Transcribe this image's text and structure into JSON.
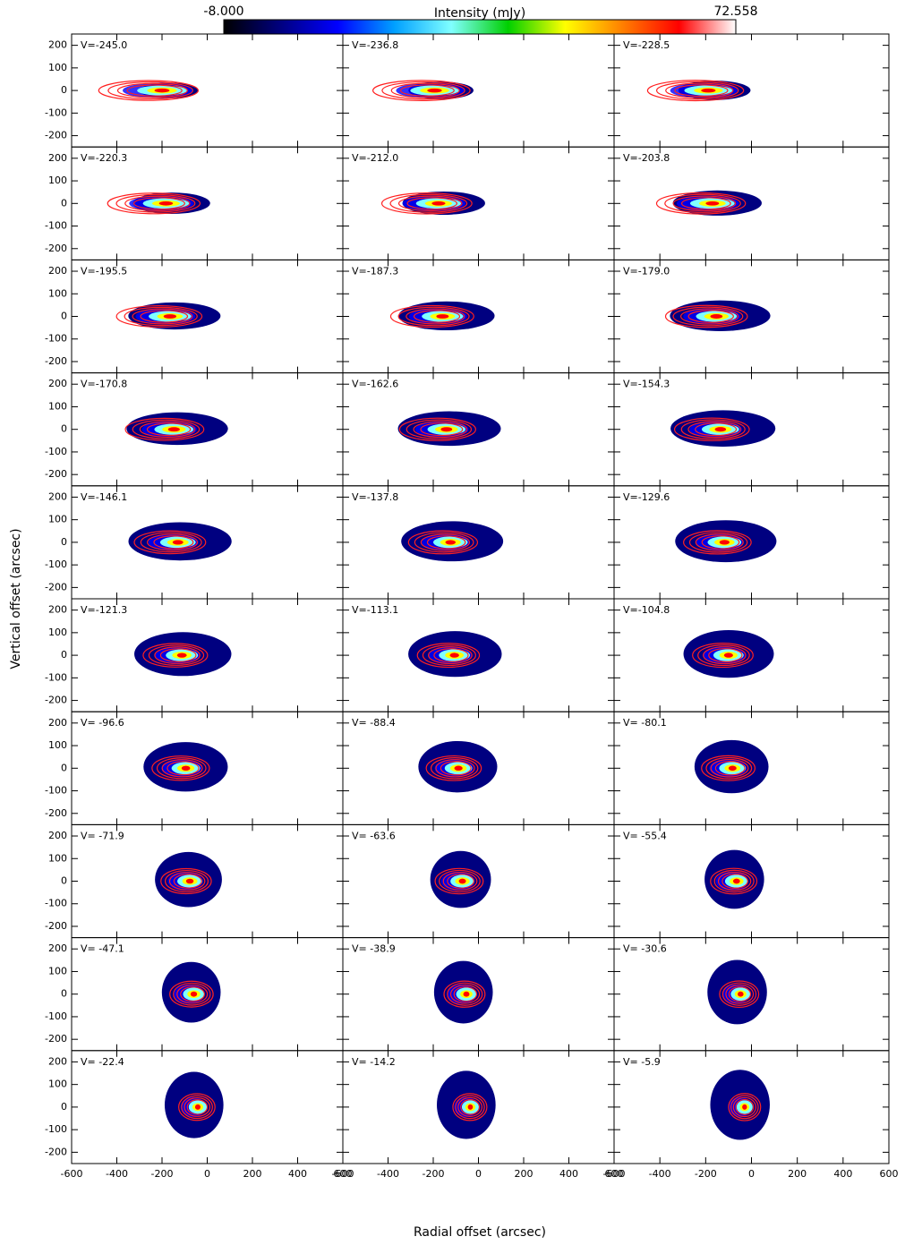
{
  "chart_data": {
    "type": "channel_map",
    "xlabel": "Radial offset (arcsec)",
    "ylabel": "Vertical offset (arcsec)",
    "xlim": [
      -600,
      600
    ],
    "ylim": [
      -250,
      250
    ],
    "xticks": [
      -600,
      -400,
      -200,
      0,
      200,
      400,
      600
    ],
    "yticks": [
      -200,
      -100,
      0,
      100,
      200
    ],
    "columns": 3,
    "panels": [
      "V=-245.0",
      "V=-236.8",
      "V=-228.5",
      "V=-220.3",
      "V=-212.0",
      "V=-203.8",
      "V=-195.5",
      "V=-187.3",
      "V=-179.0",
      "V=-170.8",
      "V=-162.6",
      "V=-154.3",
      "V=-146.1",
      "V=-137.8",
      "V=-129.6",
      "V=-121.3",
      "V=-113.1",
      "V=-104.8",
      "V= -96.6",
      "V= -88.4",
      "V= -80.1",
      "V= -71.9",
      "V= -63.6",
      "V= -55.4",
      "V= -47.1",
      "V= -38.9",
      "V= -30.6",
      "V= -22.4",
      "V= -14.2",
      "V=  -5.9"
    ],
    "colorbar": {
      "title": "Intensity (mJy)",
      "range": [
        {
          "value": -8,
          "label": "-8.000"
        },
        72.558
      ],
      "colormap": [
        "#000000",
        "#000080",
        "#0000ff",
        "#00a0ff",
        "#80ffff",
        "#00d000",
        "#ffff00",
        "#ff8000",
        "#ff0000",
        "#ffffff"
      ]
    },
    "contour_color": "#ff2020"
  }
}
